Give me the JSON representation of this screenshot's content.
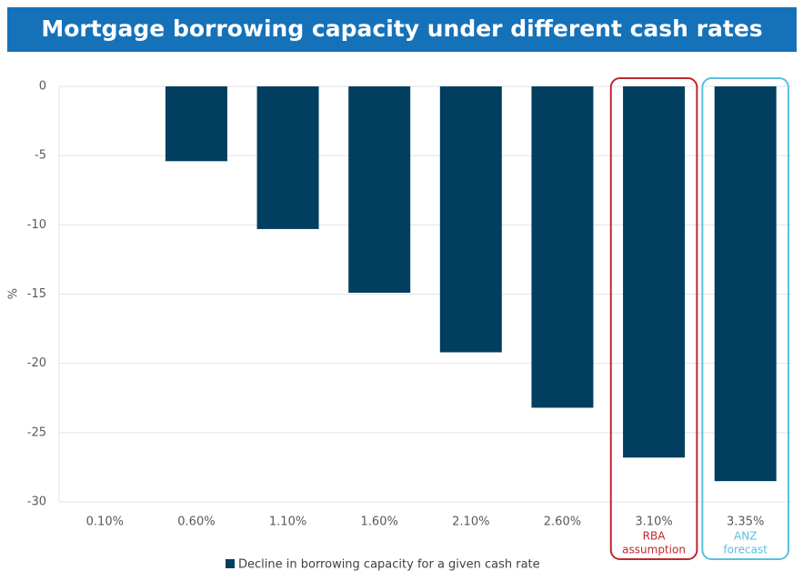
{
  "chart_data": {
    "type": "bar",
    "title": "Mortgage borrowing capacity under different cash rates",
    "y_label": "%",
    "categories": [
      "0.10%",
      "0.60%",
      "1.10%",
      "1.60%",
      "2.10%",
      "2.60%",
      "3.10%",
      "3.35%"
    ],
    "series": [
      {
        "name": "Decline in borrowing capacity for a given cash rate",
        "color": "#023e5f",
        "values": [
          0,
          -5.4,
          -10.3,
          -14.9,
          -19.2,
          -23.2,
          -26.8,
          -28.5
        ]
      }
    ],
    "ylim": [
      -30,
      0
    ],
    "yticks": [
      0,
      -5,
      -10,
      -15,
      -20,
      -25,
      -30
    ],
    "grid": true,
    "annotations": [
      {
        "category": "3.10%",
        "lines": [
          "RBA",
          "assumption"
        ],
        "color": "#c0282d"
      },
      {
        "category": "3.35%",
        "lines": [
          "ANZ",
          "forecast"
        ],
        "color": "#5bbfe0"
      }
    ]
  }
}
